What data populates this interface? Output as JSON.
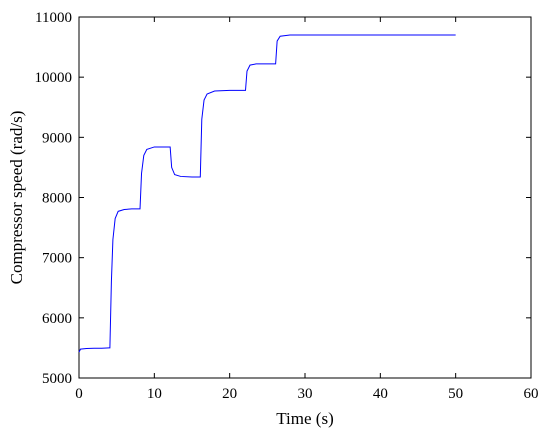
{
  "chart_data": {
    "type": "line",
    "title": "",
    "xlabel": "Time (s)",
    "ylabel": "Compressor speed (rad/s)",
    "xlim": [
      0,
      60
    ],
    "ylim": [
      5000,
      11000
    ],
    "xticks": [
      0,
      10,
      20,
      30,
      40,
      50,
      60
    ],
    "yticks": [
      5000,
      6000,
      7000,
      8000,
      9000,
      10000,
      11000
    ],
    "xtick_labels": [
      "0",
      "10",
      "20",
      "30",
      "40",
      "50",
      "60"
    ],
    "ytick_labels": [
      "5000",
      "6000",
      "7000",
      "8000",
      "9000",
      "10000",
      "11000"
    ],
    "grid": false,
    "legend": "none",
    "series": [
      {
        "color": "#0000ff",
        "points": [
          [
            0,
            5430
          ],
          [
            0.2,
            5480
          ],
          [
            1,
            5490
          ],
          [
            2,
            5495
          ],
          [
            3,
            5495
          ],
          [
            4,
            5500
          ],
          [
            4.1,
            5500
          ],
          [
            4.3,
            6600
          ],
          [
            4.5,
            7300
          ],
          [
            4.8,
            7650
          ],
          [
            5.2,
            7770
          ],
          [
            6,
            7800
          ],
          [
            7,
            7810
          ],
          [
            8,
            7810
          ],
          [
            8.1,
            7810
          ],
          [
            8.3,
            8400
          ],
          [
            8.6,
            8700
          ],
          [
            9,
            8800
          ],
          [
            10,
            8840
          ],
          [
            11,
            8840
          ],
          [
            12,
            8840
          ],
          [
            12.1,
            8840
          ],
          [
            12.3,
            8500
          ],
          [
            12.7,
            8380
          ],
          [
            13.5,
            8350
          ],
          [
            15,
            8340
          ],
          [
            16,
            8340
          ],
          [
            16.1,
            8340
          ],
          [
            16.3,
            9300
          ],
          [
            16.6,
            9620
          ],
          [
            17,
            9720
          ],
          [
            18,
            9770
          ],
          [
            20,
            9780
          ],
          [
            22,
            9780
          ],
          [
            22.1,
            9780
          ],
          [
            22.3,
            10100
          ],
          [
            22.7,
            10200
          ],
          [
            23.5,
            10220
          ],
          [
            26,
            10220
          ],
          [
            26.1,
            10220
          ],
          [
            26.3,
            10600
          ],
          [
            26.7,
            10680
          ],
          [
            28,
            10700
          ],
          [
            35,
            10700
          ],
          [
            42,
            10700
          ],
          [
            50,
            10700
          ]
        ]
      }
    ]
  }
}
